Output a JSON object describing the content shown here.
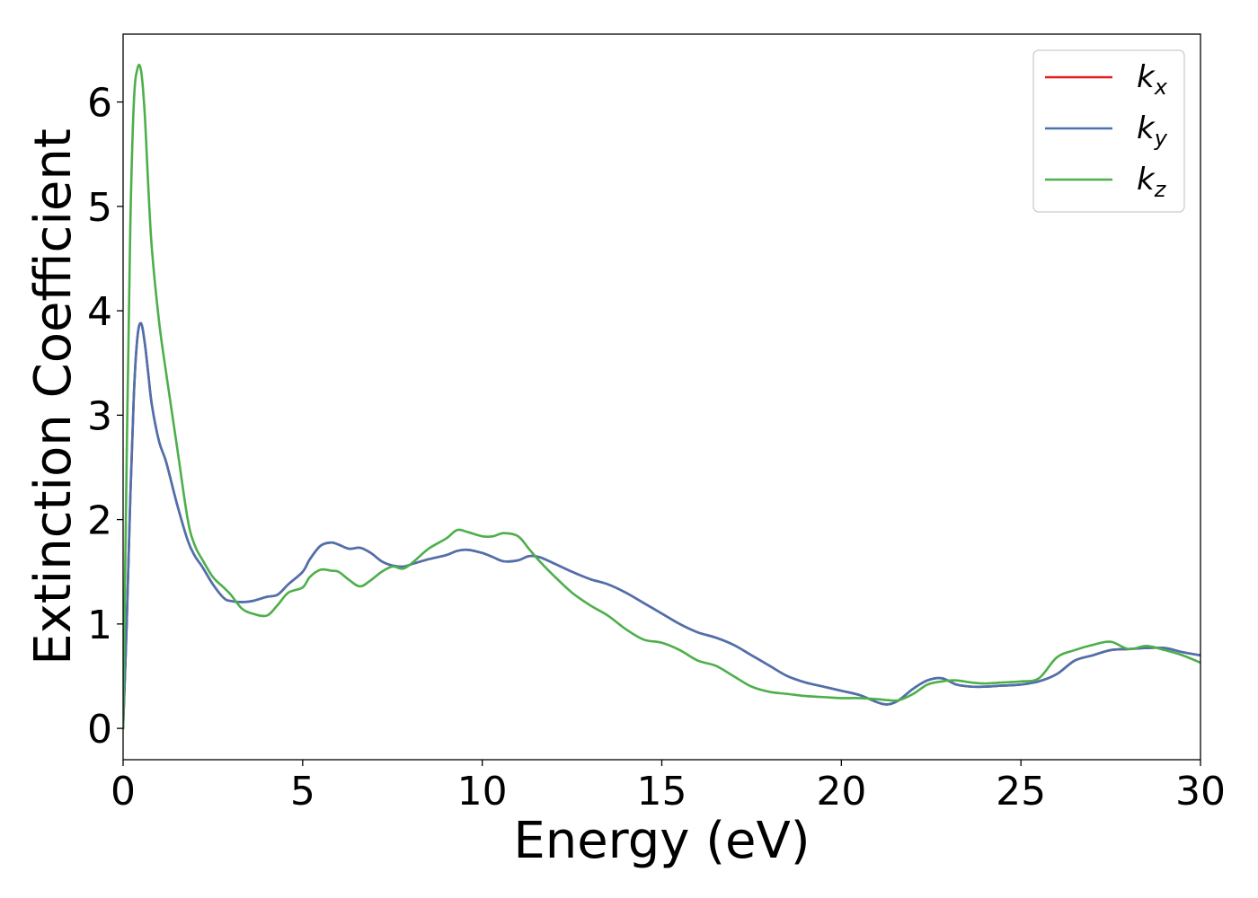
{
  "chart_data": {
    "type": "line",
    "title": "",
    "xlabel": "Energy (eV)",
    "ylabel": "Extinction Coefficient",
    "xlim": [
      0,
      30
    ],
    "ylim": [
      -0.3,
      6.65
    ],
    "xticks": [
      0,
      5,
      10,
      15,
      20,
      25,
      30
    ],
    "yticks": [
      0,
      1,
      2,
      3,
      4,
      5,
      6
    ],
    "xtick_labels": [
      "0",
      "5",
      "10",
      "15",
      "20",
      "25",
      "30"
    ],
    "ytick_labels": [
      "0",
      "1",
      "2",
      "3",
      "4",
      "5",
      "6"
    ],
    "grid": false,
    "legend_position": "top-right",
    "series": [
      {
        "name": "k",
        "subscript": "x",
        "color": "#e31a1c",
        "x": [
          0,
          0.1,
          0.2,
          0.3,
          0.4,
          0.5,
          0.6,
          0.7,
          0.8,
          1.0,
          1.2,
          1.5,
          1.8,
          2.0,
          2.2,
          2.5,
          2.8,
          3.0,
          3.3,
          3.6,
          4.0,
          4.3,
          4.6,
          5.0,
          5.2,
          5.5,
          5.8,
          6.0,
          6.3,
          6.6,
          6.9,
          7.2,
          7.5,
          7.8,
          8.1,
          8.5,
          9.0,
          9.3,
          9.6,
          10.0,
          10.3,
          10.6,
          11.0,
          11.3,
          11.6,
          12.0,
          12.5,
          13.0,
          13.5,
          14.0,
          14.5,
          15.0,
          15.5,
          16.0,
          16.5,
          17.0,
          17.5,
          18.0,
          18.5,
          19.0,
          19.5,
          20.0,
          20.5,
          21.0,
          21.3,
          21.6,
          22.0,
          22.4,
          22.8,
          23.2,
          23.6,
          24.0,
          24.5,
          25.0,
          25.5,
          26.0,
          26.5,
          27.0,
          27.5,
          28.0,
          28.5,
          29.0,
          29.5,
          30.0
        ],
        "values": [
          0,
          1.0,
          2.2,
          3.2,
          3.75,
          3.88,
          3.7,
          3.4,
          3.1,
          2.75,
          2.55,
          2.15,
          1.8,
          1.65,
          1.55,
          1.38,
          1.25,
          1.22,
          1.21,
          1.22,
          1.26,
          1.28,
          1.38,
          1.5,
          1.62,
          1.75,
          1.78,
          1.76,
          1.72,
          1.73,
          1.68,
          1.6,
          1.56,
          1.55,
          1.58,
          1.62,
          1.66,
          1.7,
          1.71,
          1.68,
          1.64,
          1.6,
          1.61,
          1.65,
          1.64,
          1.58,
          1.5,
          1.43,
          1.38,
          1.3,
          1.2,
          1.1,
          1.0,
          0.92,
          0.87,
          0.8,
          0.7,
          0.6,
          0.5,
          0.44,
          0.4,
          0.36,
          0.32,
          0.25,
          0.23,
          0.27,
          0.38,
          0.46,
          0.48,
          0.42,
          0.4,
          0.4,
          0.41,
          0.42,
          0.45,
          0.52,
          0.65,
          0.7,
          0.75,
          0.76,
          0.77,
          0.77,
          0.73,
          0.7
        ]
      },
      {
        "name": "k",
        "subscript": "y",
        "color": "#4a72b0",
        "x": [
          0,
          0.1,
          0.2,
          0.3,
          0.4,
          0.5,
          0.6,
          0.7,
          0.8,
          1.0,
          1.2,
          1.5,
          1.8,
          2.0,
          2.2,
          2.5,
          2.8,
          3.0,
          3.3,
          3.6,
          4.0,
          4.3,
          4.6,
          5.0,
          5.2,
          5.5,
          5.8,
          6.0,
          6.3,
          6.6,
          6.9,
          7.2,
          7.5,
          7.8,
          8.1,
          8.5,
          9.0,
          9.3,
          9.6,
          10.0,
          10.3,
          10.6,
          11.0,
          11.3,
          11.6,
          12.0,
          12.5,
          13.0,
          13.5,
          14.0,
          14.5,
          15.0,
          15.5,
          16.0,
          16.5,
          17.0,
          17.5,
          18.0,
          18.5,
          19.0,
          19.5,
          20.0,
          20.5,
          21.0,
          21.3,
          21.6,
          22.0,
          22.4,
          22.8,
          23.2,
          23.6,
          24.0,
          24.5,
          25.0,
          25.5,
          26.0,
          26.5,
          27.0,
          27.5,
          28.0,
          28.5,
          29.0,
          29.5,
          30.0
        ],
        "values": [
          0,
          1.0,
          2.2,
          3.2,
          3.75,
          3.88,
          3.7,
          3.4,
          3.1,
          2.75,
          2.55,
          2.15,
          1.8,
          1.65,
          1.55,
          1.38,
          1.25,
          1.22,
          1.21,
          1.22,
          1.26,
          1.28,
          1.38,
          1.5,
          1.62,
          1.75,
          1.78,
          1.76,
          1.72,
          1.73,
          1.68,
          1.6,
          1.56,
          1.55,
          1.58,
          1.62,
          1.66,
          1.7,
          1.71,
          1.68,
          1.64,
          1.6,
          1.61,
          1.65,
          1.64,
          1.58,
          1.5,
          1.43,
          1.38,
          1.3,
          1.2,
          1.1,
          1.0,
          0.92,
          0.87,
          0.8,
          0.7,
          0.6,
          0.5,
          0.44,
          0.4,
          0.36,
          0.32,
          0.25,
          0.23,
          0.27,
          0.38,
          0.46,
          0.48,
          0.42,
          0.4,
          0.4,
          0.41,
          0.42,
          0.45,
          0.52,
          0.65,
          0.7,
          0.75,
          0.76,
          0.77,
          0.77,
          0.73,
          0.7
        ]
      },
      {
        "name": "k",
        "subscript": "z",
        "color": "#4daf4a",
        "x": [
          0,
          0.1,
          0.2,
          0.3,
          0.4,
          0.5,
          0.6,
          0.7,
          0.8,
          1.0,
          1.2,
          1.5,
          1.8,
          2.0,
          2.2,
          2.5,
          2.8,
          3.0,
          3.3,
          3.6,
          4.0,
          4.3,
          4.6,
          5.0,
          5.2,
          5.5,
          5.8,
          6.0,
          6.3,
          6.6,
          6.9,
          7.2,
          7.5,
          7.8,
          8.1,
          8.5,
          9.0,
          9.3,
          9.6,
          10.0,
          10.3,
          10.6,
          11.0,
          11.3,
          11.6,
          12.0,
          12.5,
          13.0,
          13.5,
          14.0,
          14.5,
          15.0,
          15.5,
          16.0,
          16.5,
          17.0,
          17.5,
          18.0,
          18.5,
          19.0,
          19.5,
          20.0,
          20.5,
          21.0,
          21.3,
          21.6,
          22.0,
          22.4,
          22.8,
          23.2,
          23.6,
          24.0,
          24.5,
          25.0,
          25.5,
          26.0,
          26.5,
          27.0,
          27.5,
          28.0,
          28.5,
          29.0,
          29.5,
          30.0
        ],
        "values": [
          0,
          2.6,
          4.8,
          6.0,
          6.32,
          6.3,
          5.9,
          5.2,
          4.6,
          3.9,
          3.4,
          2.7,
          2.0,
          1.75,
          1.62,
          1.45,
          1.35,
          1.28,
          1.15,
          1.1,
          1.08,
          1.18,
          1.3,
          1.35,
          1.45,
          1.52,
          1.51,
          1.5,
          1.42,
          1.36,
          1.42,
          1.5,
          1.55,
          1.53,
          1.6,
          1.72,
          1.82,
          1.9,
          1.88,
          1.84,
          1.84,
          1.87,
          1.84,
          1.72,
          1.6,
          1.46,
          1.3,
          1.18,
          1.08,
          0.95,
          0.85,
          0.82,
          0.75,
          0.65,
          0.6,
          0.5,
          0.4,
          0.35,
          0.33,
          0.31,
          0.3,
          0.29,
          0.29,
          0.28,
          0.27,
          0.27,
          0.33,
          0.42,
          0.45,
          0.46,
          0.44,
          0.43,
          0.44,
          0.45,
          0.48,
          0.68,
          0.75,
          0.8,
          0.83,
          0.76,
          0.79,
          0.75,
          0.7,
          0.63
        ]
      }
    ]
  }
}
